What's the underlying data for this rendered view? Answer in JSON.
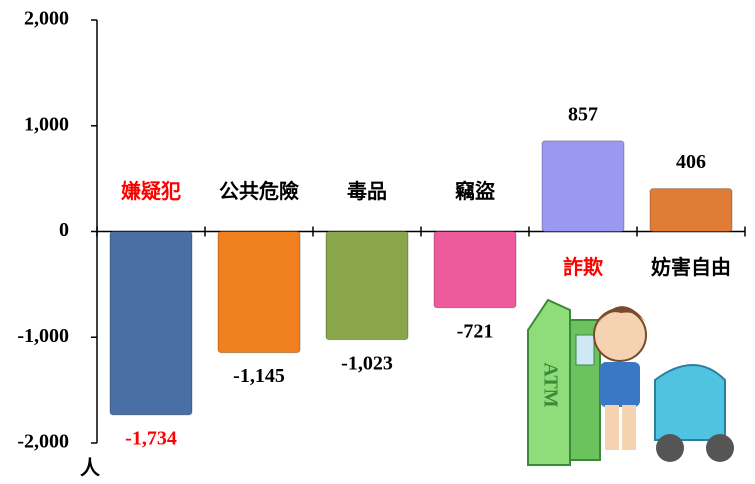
{
  "chart_data": {
    "type": "bar",
    "categories": [
      "嫌疑犯",
      "公共危險",
      "毒品",
      "竊盜",
      "詐欺",
      "妨害自由"
    ],
    "values": [
      -1734,
      -1145,
      -1023,
      -721,
      857,
      406
    ],
    "value_labels": [
      "-1,734",
      "-1,145",
      "-1,023",
      "-721",
      "857",
      "406"
    ],
    "colors": [
      "#4a6fa5",
      "#f07f1e",
      "#8aa64a",
      "#ee5a9c",
      "#9a98f0",
      "#e07c35"
    ],
    "label_colors": [
      "#ff0000",
      "#000000",
      "#000000",
      "#000000",
      "#ff0000",
      "#000000"
    ],
    "value_label_colors": [
      "#ff0000",
      "#000000",
      "#000000",
      "#000000",
      "#000000",
      "#000000"
    ],
    "ylabel": "人",
    "ylim": [
      -2000,
      2000
    ],
    "yticks": [
      {
        "value": 2000,
        "label": "2,000"
      },
      {
        "value": 1000,
        "label": "1,000"
      },
      0,
      {
        "value": -1000,
        "label": "-1,000"
      },
      {
        "value": -2000,
        "label": "-2,000"
      }
    ],
    "annotations": [
      "ATM"
    ]
  }
}
